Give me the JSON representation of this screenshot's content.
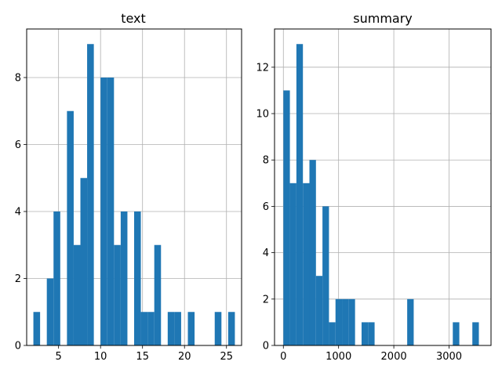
{
  "figure": {
    "colors": {
      "bar": "#1f77b4",
      "grid": "#b0b0b0"
    }
  },
  "chart_data": [
    {
      "type": "bar",
      "title": "text",
      "xlabel": "",
      "ylabel": "",
      "xlim": [
        1.2,
        26.8
      ],
      "ylim": [
        0,
        9.45
      ],
      "grid": true,
      "xticks": [
        5,
        10,
        15,
        20,
        25
      ],
      "yticks": [
        0,
        2,
        4,
        6,
        8
      ],
      "bins": [
        {
          "start": 2.0,
          "end": 2.8,
          "count": 1
        },
        {
          "start": 2.8,
          "end": 3.6,
          "count": 0
        },
        {
          "start": 3.6,
          "end": 4.4,
          "count": 2
        },
        {
          "start": 4.4,
          "end": 5.2,
          "count": 4
        },
        {
          "start": 5.2,
          "end": 6.0,
          "count": 0
        },
        {
          "start": 6.0,
          "end": 6.8,
          "count": 7
        },
        {
          "start": 6.8,
          "end": 7.6,
          "count": 3
        },
        {
          "start": 7.6,
          "end": 8.4,
          "count": 5
        },
        {
          "start": 8.4,
          "end": 9.2,
          "count": 9
        },
        {
          "start": 9.2,
          "end": 10.0,
          "count": 0
        },
        {
          "start": 10.0,
          "end": 10.8,
          "count": 8
        },
        {
          "start": 10.8,
          "end": 11.6,
          "count": 8
        },
        {
          "start": 11.6,
          "end": 12.4,
          "count": 3
        },
        {
          "start": 12.4,
          "end": 13.2,
          "count": 4
        },
        {
          "start": 13.2,
          "end": 14.0,
          "count": 0
        },
        {
          "start": 14.0,
          "end": 14.8,
          "count": 4
        },
        {
          "start": 14.8,
          "end": 15.6,
          "count": 1
        },
        {
          "start": 15.6,
          "end": 16.4,
          "count": 1
        },
        {
          "start": 16.4,
          "end": 17.2,
          "count": 3
        },
        {
          "start": 17.2,
          "end": 18.0,
          "count": 0
        },
        {
          "start": 18.0,
          "end": 18.8,
          "count": 1
        },
        {
          "start": 18.8,
          "end": 19.6,
          "count": 1
        },
        {
          "start": 19.6,
          "end": 20.4,
          "count": 0
        },
        {
          "start": 20.4,
          "end": 21.2,
          "count": 1
        },
        {
          "start": 21.2,
          "end": 22.0,
          "count": 0
        },
        {
          "start": 22.0,
          "end": 22.8,
          "count": 0
        },
        {
          "start": 22.8,
          "end": 23.6,
          "count": 0
        },
        {
          "start": 23.6,
          "end": 24.4,
          "count": 1
        },
        {
          "start": 24.4,
          "end": 25.2,
          "count": 0
        },
        {
          "start": 25.2,
          "end": 26.0,
          "count": 1
        }
      ]
    },
    {
      "type": "bar",
      "title": "summary",
      "xlabel": "",
      "ylabel": "",
      "xlim": [
        -160,
        3760
      ],
      "ylim": [
        0,
        13.65
      ],
      "grid": true,
      "xticks": [
        0,
        1000,
        2000,
        3000
      ],
      "yticks": [
        0,
        2,
        4,
        6,
        8,
        10,
        12
      ],
      "bins": [
        {
          "start": 0,
          "end": 118,
          "count": 11
        },
        {
          "start": 118,
          "end": 236,
          "count": 7
        },
        {
          "start": 236,
          "end": 354,
          "count": 13
        },
        {
          "start": 354,
          "end": 472,
          "count": 7
        },
        {
          "start": 472,
          "end": 590,
          "count": 8
        },
        {
          "start": 590,
          "end": 708,
          "count": 3
        },
        {
          "start": 708,
          "end": 826,
          "count": 6
        },
        {
          "start": 826,
          "end": 944,
          "count": 1
        },
        {
          "start": 944,
          "end": 1062,
          "count": 2
        },
        {
          "start": 1062,
          "end": 1180,
          "count": 2
        },
        {
          "start": 1180,
          "end": 1298,
          "count": 2
        },
        {
          "start": 1298,
          "end": 1416,
          "count": 0
        },
        {
          "start": 1416,
          "end": 1534,
          "count": 1
        },
        {
          "start": 1534,
          "end": 1652,
          "count": 1
        },
        {
          "start": 1652,
          "end": 1770,
          "count": 0
        },
        {
          "start": 1770,
          "end": 1888,
          "count": 0
        },
        {
          "start": 1888,
          "end": 2006,
          "count": 0
        },
        {
          "start": 2006,
          "end": 2124,
          "count": 0
        },
        {
          "start": 2124,
          "end": 2242,
          "count": 0
        },
        {
          "start": 2242,
          "end": 2360,
          "count": 2
        },
        {
          "start": 2360,
          "end": 2478,
          "count": 0
        },
        {
          "start": 2478,
          "end": 2596,
          "count": 0
        },
        {
          "start": 2596,
          "end": 2714,
          "count": 0
        },
        {
          "start": 2714,
          "end": 2832,
          "count": 0
        },
        {
          "start": 2832,
          "end": 2950,
          "count": 0
        },
        {
          "start": 2950,
          "end": 3068,
          "count": 0
        },
        {
          "start": 3068,
          "end": 3186,
          "count": 1
        },
        {
          "start": 3186,
          "end": 3304,
          "count": 0
        },
        {
          "start": 3304,
          "end": 3422,
          "count": 0
        },
        {
          "start": 3422,
          "end": 3540,
          "count": 1
        }
      ]
    }
  ]
}
